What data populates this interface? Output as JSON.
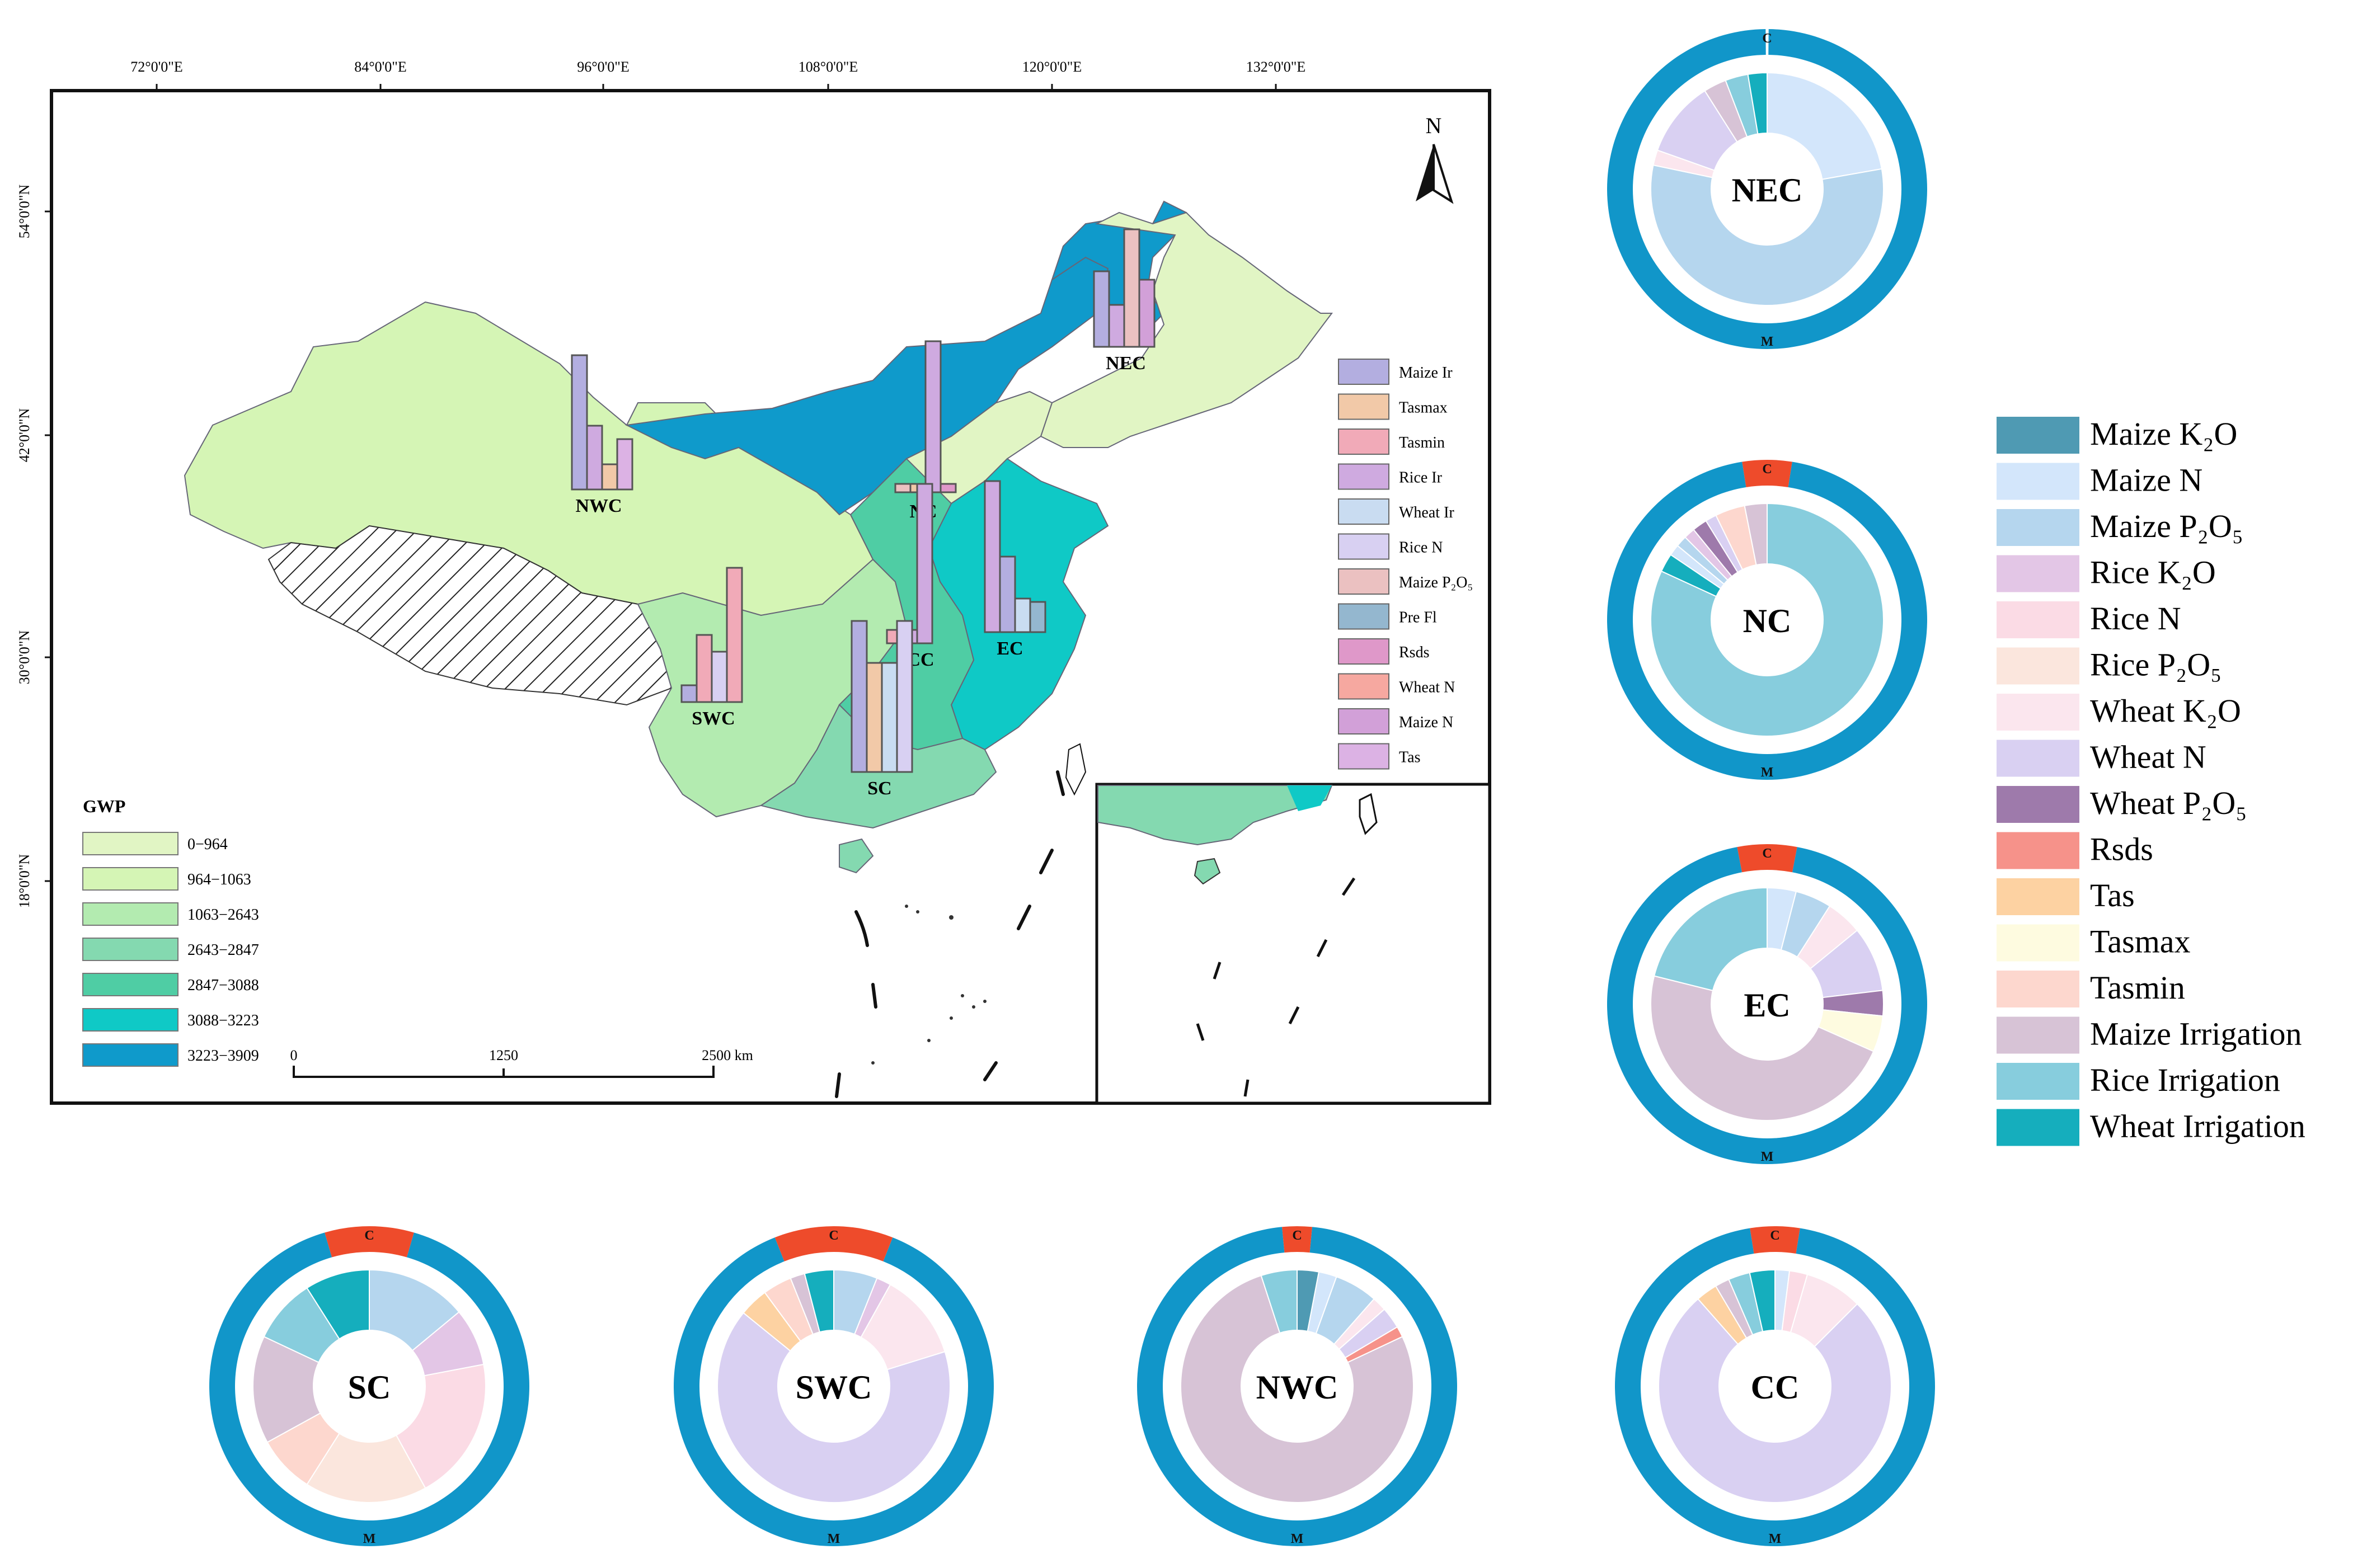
{
  "colors": {
    "gwp": [
      "#e1f5c4",
      "#d5f5b5",
      "#b3ebb0",
      "#84d9b0",
      "#4fcda4",
      "#0fc9c6",
      "#0f9acb"
    ],
    "climate_ring": "#1196c9",
    "management_ring": "#ee4b2b",
    "hatch": "#222222"
  },
  "map": {
    "longitude_ticks": [
      "72°0'0\"E",
      "84°0'0\"E",
      "96°0'0\"E",
      "108°0'0\"E",
      "120°0'0\"E",
      "132°0'0\"E"
    ],
    "latitude_ticks": [
      "54°0'0\"N",
      "42°0'0\"N",
      "30°0'0\"N",
      "18°0'0\"N"
    ],
    "north_label": "N",
    "scalebar": {
      "labels": [
        "0",
        "1250",
        "2500 km"
      ]
    },
    "gwp_legend": {
      "title": "GWP",
      "classes": [
        "0−964",
        "964−1063",
        "1063−2643",
        "2643−2847",
        "2847−3088",
        "3088−3223",
        "3223−3909"
      ]
    },
    "bar_legend": [
      {
        "label": "Maize Ir",
        "color": "#b3aee0"
      },
      {
        "label": "Tasmax",
        "color": "#f2c9a8"
      },
      {
        "label": "Tasmin",
        "color": "#f1aab8"
      },
      {
        "label": "Rice Ir",
        "color": "#cfaae0"
      },
      {
        "label": "Wheat Ir",
        "color": "#c9dcf1"
      },
      {
        "label": "Rice N",
        "color": "#d8d0f2"
      },
      {
        "label": "Maize P₂O₅",
        "color": "#ebc1c1"
      },
      {
        "label": "Pre Fl",
        "color": "#94b7cf"
      },
      {
        "label": "Rsds",
        "color": "#df98c9"
      },
      {
        "label": "Wheat N",
        "color": "#f6a8a0"
      },
      {
        "label": "Maize N",
        "color": "#d2a0d8"
      },
      {
        "label": "Tas",
        "color": "#dcb2e4"
      }
    ],
    "regions": [
      {
        "label": "NEC",
        "bars": [
          {
            "v": 0.45,
            "c": "#b3aee0"
          },
          {
            "v": 0.25,
            "c": "#cfaae0"
          },
          {
            "v": 0.7,
            "c": "#ebc1c1"
          },
          {
            "v": 0.4,
            "c": "#d2a0d8"
          }
        ]
      },
      {
        "label": "NC",
        "bars": [
          {
            "v": 0.05,
            "c": "#ebc1c1"
          },
          {
            "v": 0.05,
            "c": "#f2c9a8"
          },
          {
            "v": 0.9,
            "c": "#cfaae0"
          },
          {
            "v": 0.05,
            "c": "#df98c9"
          }
        ]
      },
      {
        "label": "NWC",
        "bars": [
          {
            "v": 0.8,
            "c": "#b3aee0"
          },
          {
            "v": 0.38,
            "c": "#cfaae0"
          },
          {
            "v": 0.15,
            "c": "#f2c9a8"
          },
          {
            "v": 0.3,
            "c": "#dcb2e4"
          }
        ]
      },
      {
        "label": "SWC",
        "bars": [
          {
            "v": 0.1,
            "c": "#b3aee0"
          },
          {
            "v": 0.4,
            "c": "#f1aab8"
          },
          {
            "v": 0.3,
            "c": "#d8d0f2"
          },
          {
            "v": 0.8,
            "c": "#f1aab8"
          }
        ]
      },
      {
        "label": "CC",
        "bars": [
          {
            "v": 0.08,
            "c": "#f1aab8"
          },
          {
            "v": 0.08,
            "c": "#cfaae0"
          },
          {
            "v": 0.95,
            "c": "#cfaae0"
          }
        ]
      },
      {
        "label": "EC",
        "bars": [
          {
            "v": 0.9,
            "c": "#cfaae0"
          },
          {
            "v": 0.45,
            "c": "#b3aee0"
          },
          {
            "v": 0.2,
            "c": "#c9dcf1"
          },
          {
            "v": 0.18,
            "c": "#94b7cf"
          }
        ]
      },
      {
        "label": "SC",
        "bars": [
          {
            "v": 0.9,
            "c": "#b3aee0"
          },
          {
            "v": 0.65,
            "c": "#f2c9a8"
          },
          {
            "v": 0.65,
            "c": "#c9dcf1"
          },
          {
            "v": 0.9,
            "c": "#d8d0f2"
          }
        ]
      }
    ]
  },
  "ring_labels": {
    "climate": "C",
    "management": "M"
  },
  "chart_data": {
    "type": "pie",
    "series_legend": [
      {
        "label": "Maize K₂O",
        "color": "#4f9ab3"
      },
      {
        "label": "Maize N",
        "color": "#d3e6fb"
      },
      {
        "label": "Maize P₂O₅",
        "color": "#b5d6ee"
      },
      {
        "label": "Rice K₂O",
        "color": "#e3c6e6"
      },
      {
        "label": "Rice N",
        "color": "#fbdbe5"
      },
      {
        "label": "Rice P₂O₅",
        "color": "#fbe6dd"
      },
      {
        "label": "Wheat K₂O",
        "color": "#fbe6ee"
      },
      {
        "label": "Wheat N",
        "color": "#d9d0f2"
      },
      {
        "label": "Wheat P₂O₅",
        "color": "#9e7aab"
      },
      {
        "label": "Rsds",
        "color": "#f6928a"
      },
      {
        "label": "Tas",
        "color": "#fdd2a2"
      },
      {
        "label": "Tasmax",
        "color": "#fefbe0"
      },
      {
        "label": "Tasmin",
        "color": "#fdd7ce"
      },
      {
        "label": "Maize Irrigation",
        "color": "#d7c3d6"
      },
      {
        "label": "Rice Irrigation",
        "color": "#87cddd"
      },
      {
        "label": "Wheat Irrigation",
        "color": "#15aebd"
      }
    ],
    "regions": [
      {
        "name": "NEC",
        "climate_share": 0.003,
        "slices": [
          {
            "item": "Maize N",
            "value": 21
          },
          {
            "item": "Maize P₂O₅",
            "value": 53
          },
          {
            "item": "Wheat K₂O",
            "value": 2
          },
          {
            "item": "Wheat N",
            "value": 10
          },
          {
            "item": "Maize Irrigation",
            "value": 3
          },
          {
            "item": "Rice Irrigation",
            "value": 3
          },
          {
            "item": "Wheat Irrigation",
            "value": 2.5
          }
        ]
      },
      {
        "name": "NC",
        "climate_share": 0.05,
        "slices": [
          {
            "item": "Rice Irrigation",
            "value": 79
          },
          {
            "item": "Wheat Irrigation",
            "value": 2.5
          },
          {
            "item": "Maize N",
            "value": 1.5
          },
          {
            "item": "Maize P₂O₅",
            "value": 1.5
          },
          {
            "item": "Rice K₂O",
            "value": 1.5
          },
          {
            "item": "Wheat P₂O₅",
            "value": 2
          },
          {
            "item": "Wheat N",
            "value": 1.5
          },
          {
            "item": "Tasmin",
            "value": 4
          },
          {
            "item": "Maize Irrigation",
            "value": 3
          }
        ]
      },
      {
        "name": "EC",
        "climate_share": 0.06,
        "slices": [
          {
            "item": "Maize N",
            "value": 4
          },
          {
            "item": "Maize P₂O₅",
            "value": 5
          },
          {
            "item": "Wheat K₂O",
            "value": 5
          },
          {
            "item": "Wheat N",
            "value": 9
          },
          {
            "item": "Wheat P₂O₅",
            "value": 3.5
          },
          {
            "item": "Tasmax",
            "value": 5
          },
          {
            "item": "Maize Irrigation",
            "value": 47
          },
          {
            "item": "Rice Irrigation",
            "value": 21
          }
        ]
      },
      {
        "name": "SC",
        "climate_share": 0.09,
        "slices": [
          {
            "item": "Maize P₂O₅",
            "value": 14
          },
          {
            "item": "Rice K₂O",
            "value": 8
          },
          {
            "item": "Rice N",
            "value": 20
          },
          {
            "item": "Rice P₂O₅",
            "value": 17
          },
          {
            "item": "Tasmin",
            "value": 8
          },
          {
            "item": "Maize Irrigation",
            "value": 15
          },
          {
            "item": "Rice Irrigation",
            "value": 9
          },
          {
            "item": "Wheat Irrigation",
            "value": 9
          }
        ]
      },
      {
        "name": "SWC",
        "climate_share": 0.12,
        "slices": [
          {
            "item": "Maize P₂O₅",
            "value": 6
          },
          {
            "item": "Rice K₂O",
            "value": 2
          },
          {
            "item": "Wheat K₂O",
            "value": 12
          },
          {
            "item": "Wheat N",
            "value": 65
          },
          {
            "item": "Tas",
            "value": 4
          },
          {
            "item": "Tasmin",
            "value": 4
          },
          {
            "item": "Maize Irrigation",
            "value": 2
          },
          {
            "item": "Wheat Irrigation",
            "value": 4
          }
        ]
      },
      {
        "name": "NWC",
        "climate_share": 0.03,
        "slices": [
          {
            "item": "Maize K₂O",
            "value": 3
          },
          {
            "item": "Maize N",
            "value": 2.5
          },
          {
            "item": "Maize P₂O₅",
            "value": 6
          },
          {
            "item": "Wheat K₂O",
            "value": 2
          },
          {
            "item": "Wheat N",
            "value": 3
          },
          {
            "item": "Rsds",
            "value": 1.5
          },
          {
            "item": "Maize Irrigation",
            "value": 77
          },
          {
            "item": "Rice Irrigation",
            "value": 5
          }
        ]
      },
      {
        "name": "CC",
        "climate_share": 0.05,
        "slices": [
          {
            "item": "Maize N",
            "value": 2
          },
          {
            "item": "Rice N",
            "value": 2.5
          },
          {
            "item": "Wheat K₂O",
            "value": 8
          },
          {
            "item": "Wheat N",
            "value": 76
          },
          {
            "item": "Tas",
            "value": 3
          },
          {
            "item": "Maize Irrigation",
            "value": 2
          },
          {
            "item": "Rice Irrigation",
            "value": 3
          },
          {
            "item": "Wheat Irrigation",
            "value": 3.5
          }
        ]
      }
    ]
  }
}
